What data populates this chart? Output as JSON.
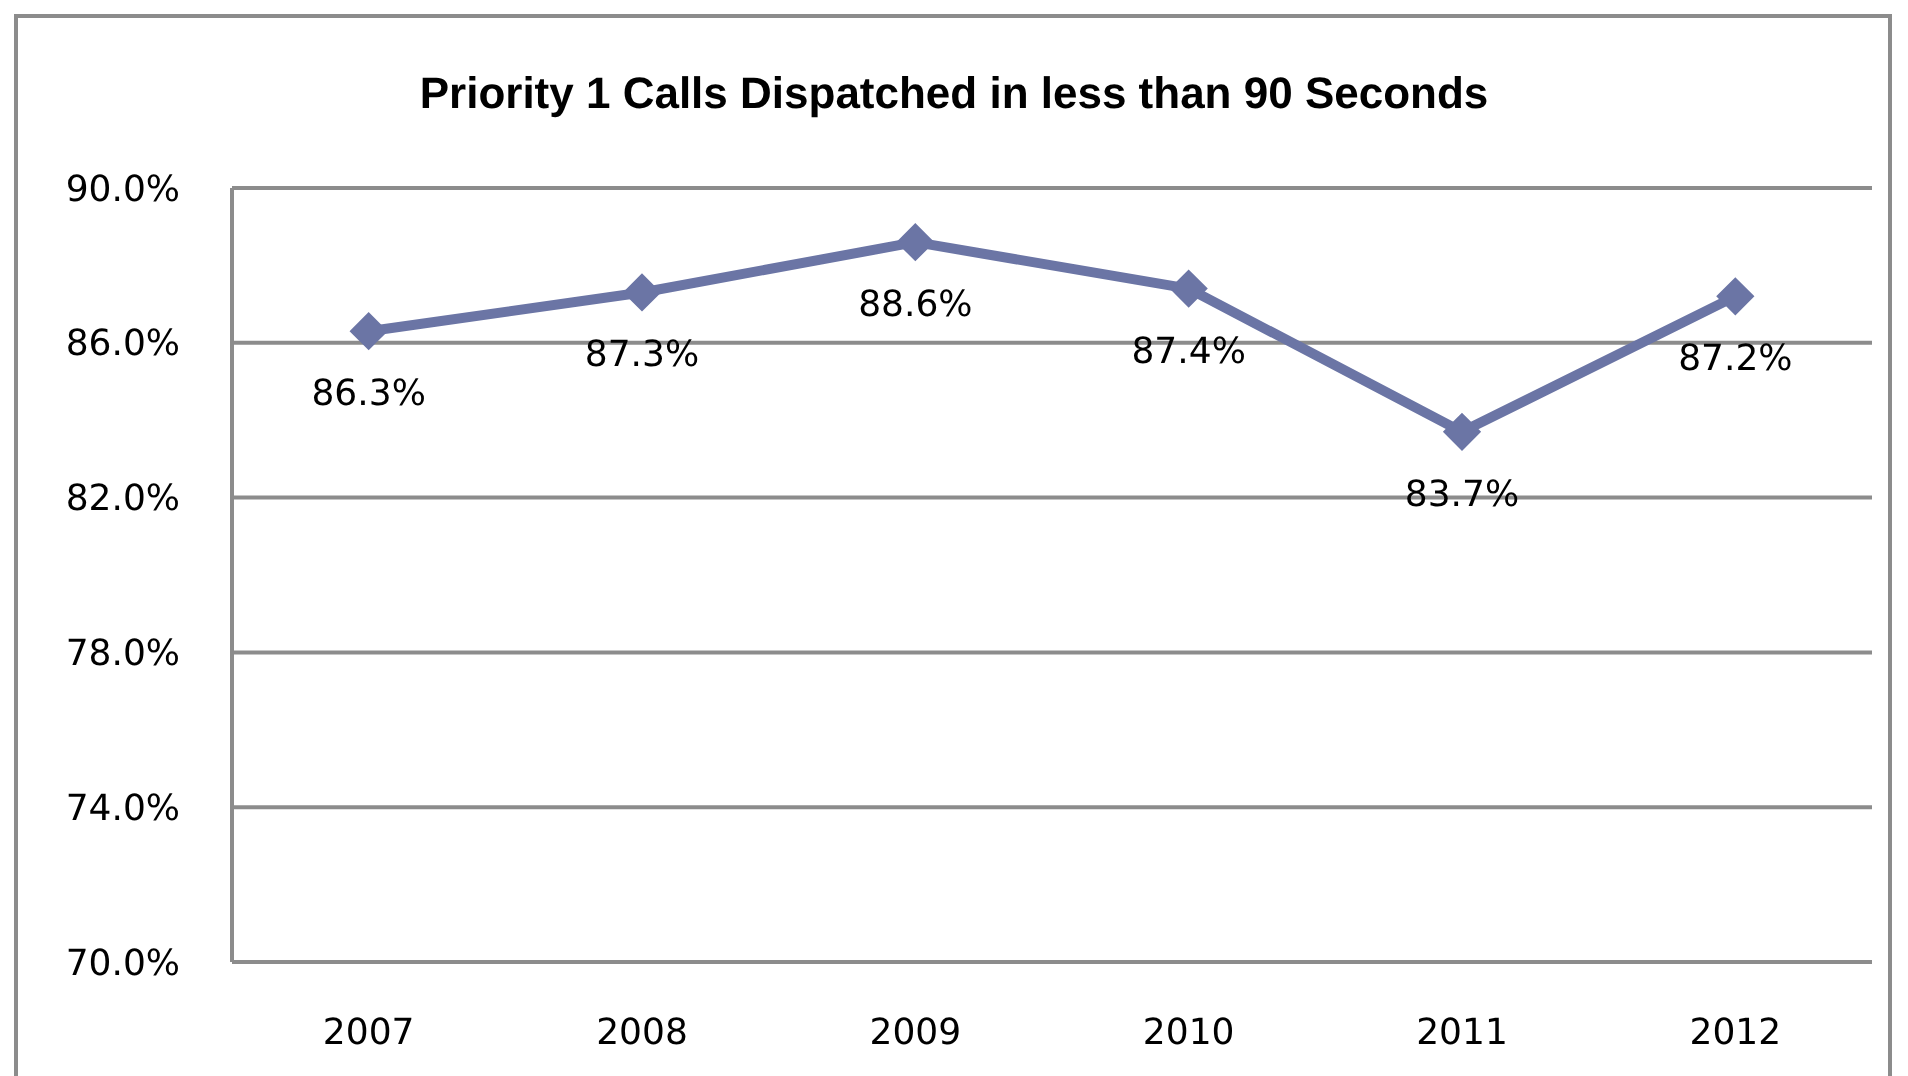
{
  "chart_data": {
    "type": "line",
    "title": "Priority 1 Calls Dispatched in less than 90 Seconds",
    "categories": [
      "2007",
      "2008",
      "2009",
      "2010",
      "2011",
      "2012"
    ],
    "series": [
      {
        "color": "#6b75a5",
        "values": [
          86.3,
          87.3,
          88.6,
          87.4,
          83.7,
          87.2
        ],
        "value_labels": [
          "86.3%",
          "87.3%",
          "88.6%",
          "87.4%",
          "83.7%",
          "87.2%"
        ]
      }
    ],
    "ylim": [
      70,
      90
    ],
    "yticks": [
      {
        "value": 70,
        "label": "70.0%"
      },
      {
        "value": 74,
        "label": "74.0%"
      },
      {
        "value": 78,
        "label": "78.0%"
      },
      {
        "value": 82,
        "label": "82.0%"
      },
      {
        "value": 86,
        "label": "86.0%"
      },
      {
        "value": 90,
        "label": "90.0%"
      }
    ],
    "grid": "y",
    "marker": "diamond"
  }
}
